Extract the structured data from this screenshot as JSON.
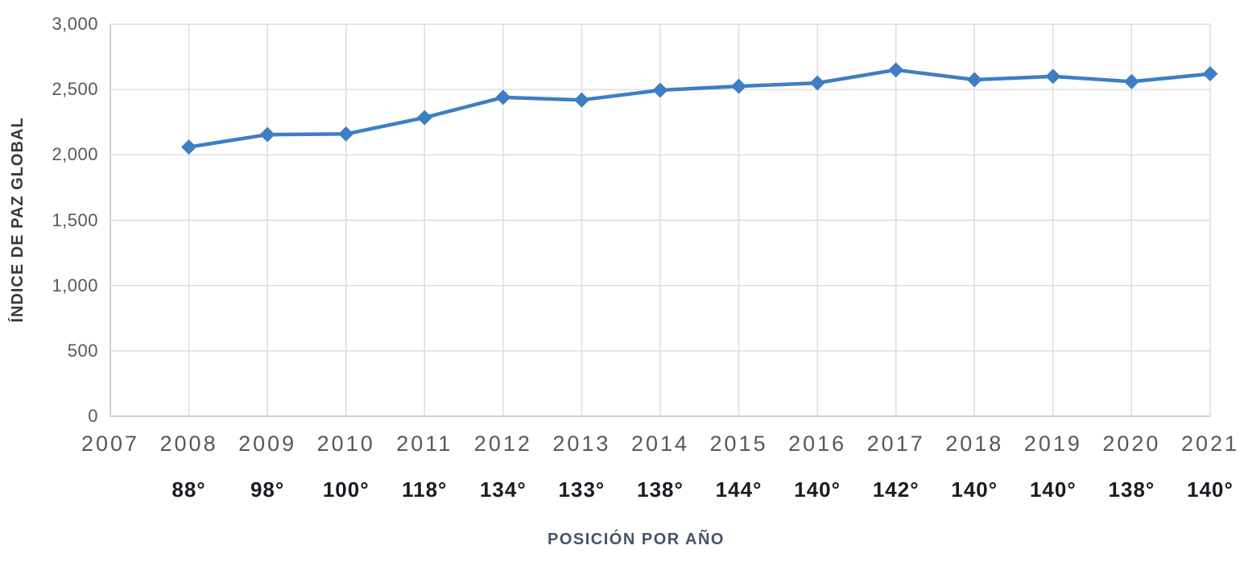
{
  "chart_data": {
    "type": "line",
    "title": "",
    "ylabel": "ÍNDICE DE PAZ GLOBAL",
    "xlabel": "POSICIÓN POR AÑO",
    "categories": [
      "2007",
      "2008",
      "2009",
      "2010",
      "2011",
      "2012",
      "2013",
      "2014",
      "2015",
      "2016",
      "2017",
      "2018",
      "2019",
      "2020",
      "2021"
    ],
    "series": [
      {
        "name": "Índice de paz global",
        "points": [
          {
            "year": "2008",
            "value": 2060,
            "position": "88°"
          },
          {
            "year": "2009",
            "value": 2155,
            "position": "98°"
          },
          {
            "year": "2010",
            "value": 2160,
            "position": "100°"
          },
          {
            "year": "2011",
            "value": 2285,
            "position": "118°"
          },
          {
            "year": "2012",
            "value": 2440,
            "position": "134°"
          },
          {
            "year": "2013",
            "value": 2420,
            "position": "133°"
          },
          {
            "year": "2014",
            "value": 2495,
            "position": "138°"
          },
          {
            "year": "2015",
            "value": 2525,
            "position": "144°"
          },
          {
            "year": "2016",
            "value": 2550,
            "position": "140°"
          },
          {
            "year": "2017",
            "value": 2650,
            "position": "142°"
          },
          {
            "year": "2018",
            "value": 2575,
            "position": "140°"
          },
          {
            "year": "2019",
            "value": 2600,
            "position": "140°"
          },
          {
            "year": "2020",
            "value": 2560,
            "position": "138°"
          },
          {
            "year": "2021",
            "value": 2620,
            "position": "140°"
          }
        ]
      }
    ],
    "ylim": [
      0,
      3000
    ],
    "yticks": [
      {
        "value": 0,
        "label": "0"
      },
      {
        "value": 500,
        "label": "500"
      },
      {
        "value": 1000,
        "label": "1,000"
      },
      {
        "value": 1500,
        "label": "1,500"
      },
      {
        "value": 2000,
        "label": "2,000"
      },
      {
        "value": 2500,
        "label": "2,500"
      },
      {
        "value": 3000,
        "label": "3,000"
      }
    ],
    "grid": true,
    "legend": "none",
    "marker_shape": "diamond",
    "colors": {
      "line": "#3e7ec4",
      "marker": "#3e7ec4",
      "gridline": "#dcdcdc",
      "axis_line": "#c6c6c6",
      "tick_text": "#55585d",
      "year_text": "#55585d",
      "position_text": "#1b1b22",
      "x_title_text": "#44546a",
      "y_title_text": "#35383f"
    }
  }
}
